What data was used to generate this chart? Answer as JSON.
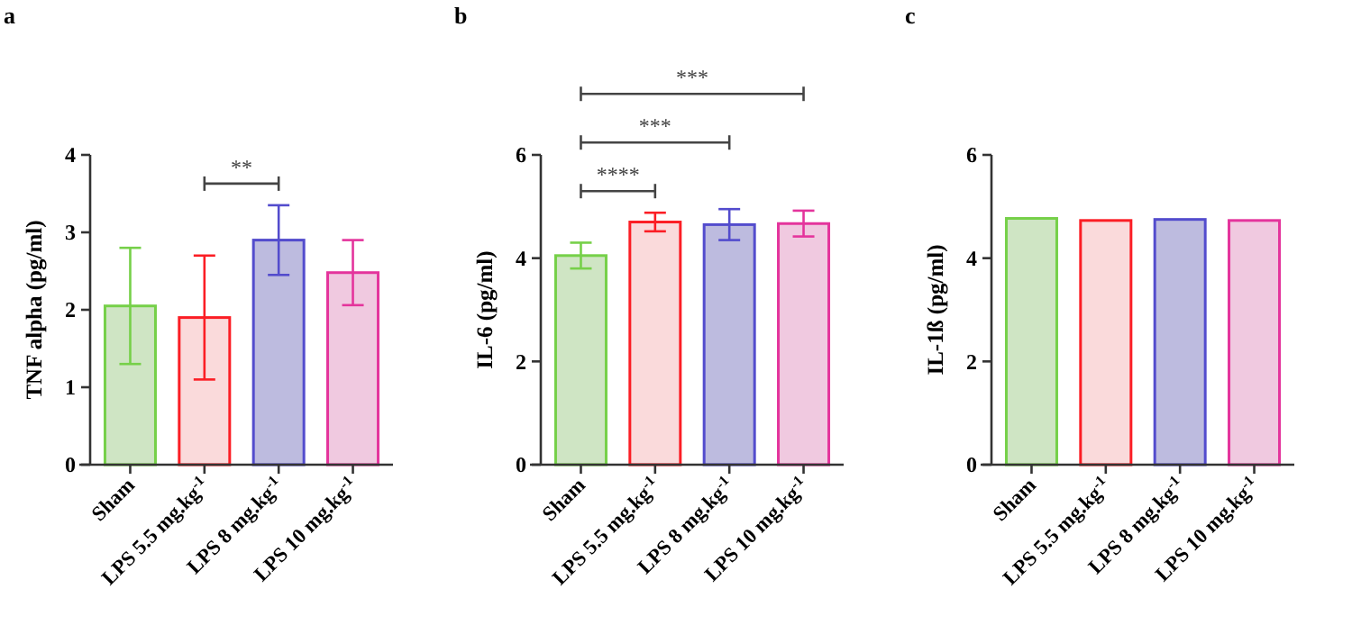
{
  "chart_data": [
    {
      "type": "bar",
      "title": "a",
      "ylabel": "TNF alpha (pg/ml)",
      "categories": [
        "Sham",
        "LPS 5.5 mg.kg$^{-1}$",
        "LPS 8 mg.kg$^{-1}$",
        "LPS 10 mg.kg$^{-1}$"
      ],
      "values": [
        2.05,
        1.9,
        2.9,
        2.48
      ],
      "errors": [
        0.75,
        0.8,
        0.45,
        0.42
      ],
      "colors": [
        "#cfe5c4",
        "#fadadb",
        "#bdbbdf",
        "#f0c9e0"
      ],
      "ylim": [
        0,
        4
      ],
      "yticks": [
        0,
        1,
        2,
        3,
        4
      ],
      "annotations": [
        "**"
      ]
    },
    {
      "type": "bar",
      "title": "b",
      "ylabel": "IL-6 (pg/ml)",
      "categories": [
        "Sham",
        "LPS 5.5 mg.kg$^{-1}$",
        "LPS 8 mg.kg$^{-1}$",
        "LPS 10 mg.kg$^{-1}$"
      ],
      "values": [
        4.05,
        4.7,
        4.65,
        4.67
      ],
      "errors": [
        0.25,
        0.18,
        0.3,
        0.25
      ],
      "colors": [
        "#cfe5c4",
        "#fadadb",
        "#bdbbdf",
        "#f0c9e0"
      ],
      "ylim": [
        0,
        6
      ],
      "yticks": [
        0,
        2,
        4,
        6
      ],
      "annotations": [
        "****",
        "***",
        "***"
      ]
    },
    {
      "type": "bar",
      "title": "c",
      "ylabel": "IL-1ß (pg/ml)",
      "categories": [
        "Sham",
        "LPS 5.5 mg.kg$^{-1}$",
        "LPS 8 mg.kg$^{-1}$",
        "LPS 10 mg.kg$^{-1}$"
      ],
      "values": [
        4.77,
        4.73,
        4.75,
        4.73
      ],
      "colors": [
        "#cfe5c4",
        "#fadadb",
        "#bdbbdf",
        "#f0c9e0"
      ],
      "ylim": [
        0,
        6
      ],
      "yticks": [
        0,
        2,
        4,
        6
      ]
    }
  ]
}
